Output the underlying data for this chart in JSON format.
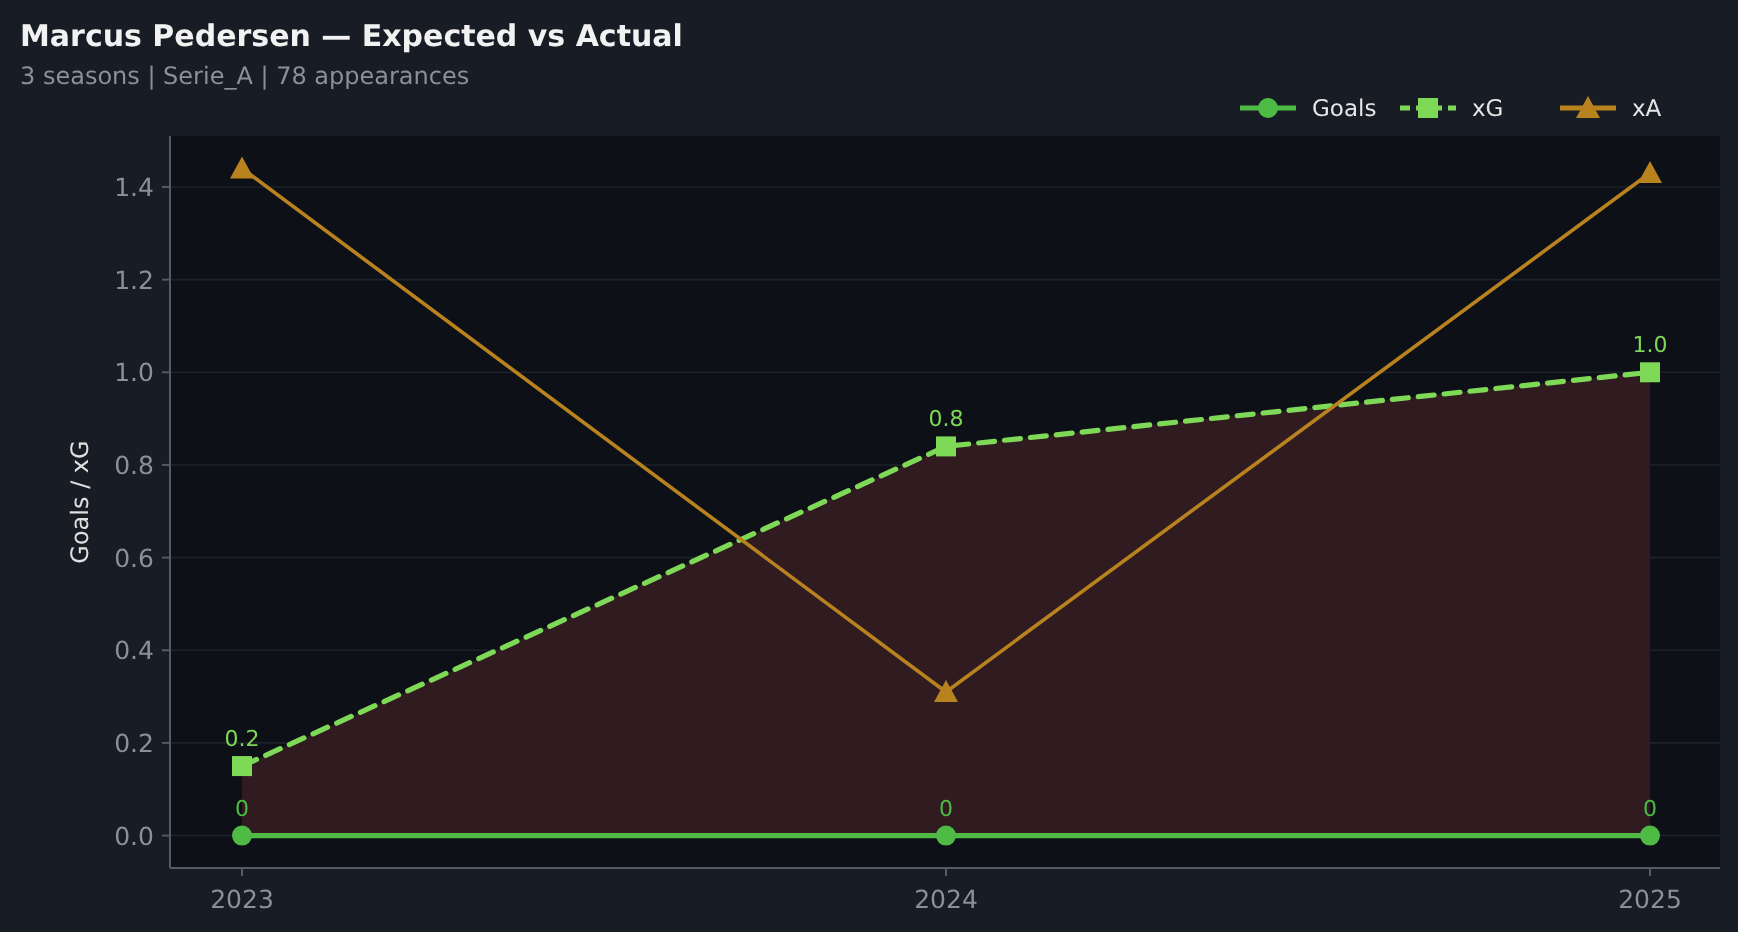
{
  "chart_data": {
    "type": "line",
    "title": "Marcus Pedersen — Expected vs Actual",
    "subtitle": "3 seasons | Serie_A | 78 appearances",
    "ylabel": "Goals / xG",
    "categories": [
      "2023",
      "2024",
      "2025"
    ],
    "series": [
      {
        "name": "Goals",
        "color": "#4dbb44",
        "values": [
          0,
          0,
          0
        ],
        "marker": "circle",
        "line_style": "solid",
        "value_labels": [
          "0",
          "0",
          "0"
        ]
      },
      {
        "name": "xG",
        "color": "#7ed957",
        "values": [
          0.15,
          0.84,
          1.0
        ],
        "lower": [
          0,
          0,
          0
        ],
        "upper": [
          0.15,
          0.84,
          1.0
        ],
        "marker": "square",
        "line_style": "dashed",
        "value_labels": [
          "0.2",
          "0.8",
          "1.0"
        ]
      },
      {
        "name": "xA",
        "color": "#b8821e",
        "values": [
          1.44,
          0.31,
          1.43
        ],
        "marker": "triangle",
        "line_style": "solid"
      }
    ],
    "ylim": [
      -0.07,
      1.51
    ],
    "yticks": [
      {
        "value": 0,
        "label": "0.0"
      },
      0.2,
      0.4,
      0.6,
      0.8,
      {
        "value": 1,
        "label": "1.0"
      },
      1.2,
      1.4
    ],
    "grid": "y",
    "legend": "top right"
  }
}
